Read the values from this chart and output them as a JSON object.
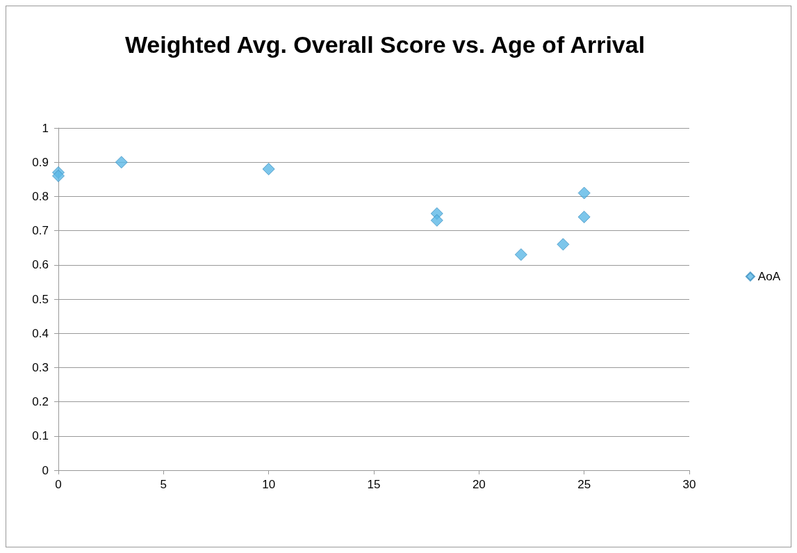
{
  "chart_data": {
    "type": "scatter",
    "title": "Weighted Avg. Overall Score vs. Age of Arrival",
    "series": [
      {
        "name": "AoA",
        "color": "#5bb8e6",
        "x": [
          0,
          0,
          3,
          10,
          18,
          18,
          22,
          24,
          25,
          25
        ],
        "values": [
          0.87,
          0.86,
          0.9,
          0.88,
          0.75,
          0.73,
          0.63,
          0.66,
          0.81,
          0.74
        ]
      }
    ],
    "xlim": [
      0,
      30
    ],
    "xticks": [
      0,
      5,
      10,
      15,
      20,
      25,
      30
    ],
    "ylim": [
      0,
      1
    ],
    "yticks": [
      0,
      0.1,
      0.2,
      0.3,
      0.4,
      0.5,
      0.6,
      0.7,
      0.8,
      0.9,
      1
    ],
    "grid": "y",
    "legend": "right",
    "marker": "diamond"
  }
}
